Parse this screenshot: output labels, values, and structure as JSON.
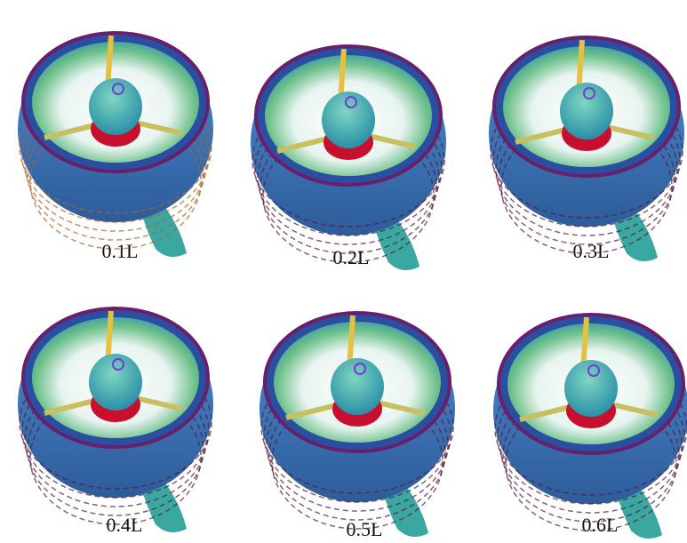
{
  "panels": [
    {
      "label": "0.1L"
    },
    {
      "label": "0.2L"
    },
    {
      "label": "0.3L"
    },
    {
      "label": "0.4L"
    },
    {
      "label": "0.5L"
    },
    {
      "label": "0.6L"
    }
  ]
}
